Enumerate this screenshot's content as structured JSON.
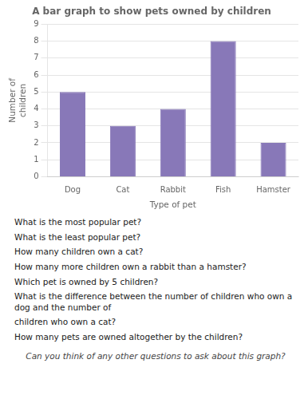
{
  "chart_data": {
    "type": "bar",
    "title": "A bar graph to show pets owned by children",
    "x_label": "Type of pet",
    "y_label": "Number of\nchildren",
    "categories": [
      "Dog",
      "Cat",
      "Rabbit",
      "Fish",
      "Hamster"
    ],
    "values": [
      5,
      3,
      4,
      8,
      2
    ],
    "color": "#8878b8",
    "ylim": [
      0,
      9
    ],
    "yticks": [
      0,
      1,
      2,
      3,
      4,
      5,
      6,
      7,
      8,
      9
    ],
    "grid": true,
    "annotations": [
      "What is the most popular pet?",
      "What is the least popular pet?",
      "How many children own a cat?",
      "How many more children own a rabbit than a hamster?",
      "Which pet is owned by 5 children?",
      "What is the difference between the number of children who own a dog and the number of",
      "children who own a cat?",
      "How many pets are owned altogether by the children?",
      "Can you think of any other questions to ask about this graph?"
    ]
  }
}
